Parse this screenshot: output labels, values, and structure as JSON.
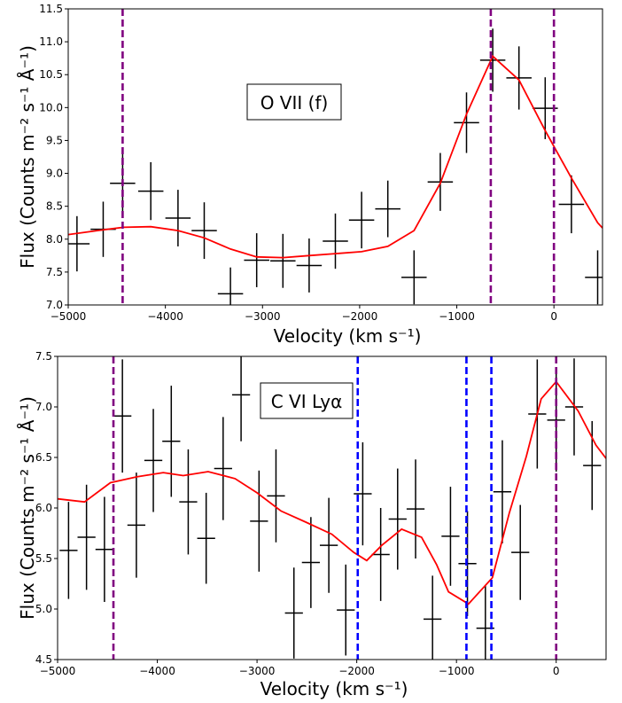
{
  "chart_data": [
    {
      "type": "scatter",
      "annotation": "O VII (f)",
      "xlabel": "Velocity (km s⁻¹)",
      "ylabel": "Flux (Counts m⁻² s⁻¹ Å⁻¹)",
      "xlim": [
        -5000,
        500
      ],
      "ylim": [
        7.0,
        11.5
      ],
      "xticks": [
        -5000,
        -4000,
        -3000,
        -2000,
        -1000,
        0
      ],
      "xtick_labels": [
        "−5000",
        "−4000",
        "−3000",
        "−2000",
        "−1000",
        "0"
      ],
      "yticks": [
        7.0,
        7.5,
        8.0,
        8.5,
        9.0,
        9.5,
        10.0,
        10.5,
        11.0,
        11.5
      ],
      "ytick_labels": [
        "7.0",
        "7.5",
        "8.0",
        "8.5",
        "9.0",
        "9.5",
        "10.0",
        "10.5",
        "11.0",
        "11.5"
      ],
      "grid": false,
      "data_points": [
        {
          "x": -4910,
          "y": 7.93,
          "xerr": 130,
          "yerr": 0.42
        },
        {
          "x": -4640,
          "y": 8.15,
          "xerr": 130,
          "yerr": 0.42
        },
        {
          "x": -4440,
          "y": 8.85,
          "xerr": 130,
          "yerr": 0.44
        },
        {
          "x": -4150,
          "y": 8.73,
          "xerr": 130,
          "yerr": 0.44
        },
        {
          "x": -3870,
          "y": 8.32,
          "xerr": 130,
          "yerr": 0.43
        },
        {
          "x": -3600,
          "y": 8.13,
          "xerr": 130,
          "yerr": 0.43
        },
        {
          "x": -3330,
          "y": 7.17,
          "xerr": 130,
          "yerr": 0.4
        },
        {
          "x": -3060,
          "y": 7.68,
          "xerr": 130,
          "yerr": 0.41
        },
        {
          "x": -2790,
          "y": 7.67,
          "xerr": 130,
          "yerr": 0.41
        },
        {
          "x": -2520,
          "y": 7.6,
          "xerr": 130,
          "yerr": 0.41
        },
        {
          "x": -2250,
          "y": 7.97,
          "xerr": 130,
          "yerr": 0.42
        },
        {
          "x": -1980,
          "y": 8.29,
          "xerr": 130,
          "yerr": 0.43
        },
        {
          "x": -1710,
          "y": 8.46,
          "xerr": 130,
          "yerr": 0.43
        },
        {
          "x": -1440,
          "y": 7.42,
          "xerr": 130,
          "yerr": 0.41
        },
        {
          "x": -1170,
          "y": 8.87,
          "xerr": 130,
          "yerr": 0.44
        },
        {
          "x": -900,
          "y": 9.77,
          "xerr": 130,
          "yerr": 0.46
        },
        {
          "x": -630,
          "y": 10.72,
          "xerr": 130,
          "yerr": 0.48
        },
        {
          "x": -360,
          "y": 10.45,
          "xerr": 130,
          "yerr": 0.48
        },
        {
          "x": -90,
          "y": 9.99,
          "xerr": 130,
          "yerr": 0.47
        },
        {
          "x": 180,
          "y": 8.53,
          "xerr": 130,
          "yerr": 0.44
        },
        {
          "x": 450,
          "y": 7.42,
          "xerr": 130,
          "yerr": 0.41
        }
      ],
      "model_line": {
        "color": "#ff0000",
        "x": [
          -5000,
          -4700,
          -4430,
          -4150,
          -3870,
          -3600,
          -3330,
          -3060,
          -2790,
          -2520,
          -2250,
          -1980,
          -1710,
          -1440,
          -1170,
          -900,
          -630,
          -360,
          -90,
          180,
          450,
          500
        ],
        "y": [
          8.07,
          8.13,
          8.18,
          8.19,
          8.13,
          8.02,
          7.85,
          7.73,
          7.72,
          7.75,
          7.78,
          7.81,
          7.89,
          8.13,
          8.85,
          9.9,
          10.78,
          10.42,
          9.65,
          8.93,
          8.25,
          8.17
        ]
      },
      "vlines": [
        {
          "x": -4440,
          "color": "#800080"
        },
        {
          "x": -650,
          "color": "#800080"
        },
        {
          "x": 0,
          "color": "#800080"
        }
      ]
    },
    {
      "type": "scatter",
      "annotation": "C VI Lyα",
      "xlabel": "Velocity (km s⁻¹)",
      "ylabel": "Flux (Counts m⁻² s⁻¹ Å⁻¹)",
      "xlim": [
        -5000,
        500
      ],
      "ylim": [
        4.5,
        7.5
      ],
      "xticks": [
        -5000,
        -4000,
        -3000,
        -2000,
        -1000,
        0
      ],
      "xtick_labels": [
        "−5000",
        "−4000",
        "−3000",
        "−2000",
        "−1000",
        "0"
      ],
      "yticks": [
        4.5,
        5.0,
        5.5,
        6.0,
        6.5,
        7.0,
        7.5
      ],
      "ytick_labels": [
        "4.5",
        "5.0",
        "5.5",
        "6.0",
        "6.5",
        "7.0",
        "7.5"
      ],
      "grid": false,
      "data_points": [
        {
          "x": -4890,
          "y": 5.58,
          "xerr": 90,
          "yerr": 0.48
        },
        {
          "x": -4710,
          "y": 5.71,
          "xerr": 90,
          "yerr": 0.52
        },
        {
          "x": -4530,
          "y": 5.59,
          "xerr": 90,
          "yerr": 0.52
        },
        {
          "x": -4350,
          "y": 6.91,
          "xerr": 90,
          "yerr": 0.56
        },
        {
          "x": -4210,
          "y": 5.83,
          "xerr": 90,
          "yerr": 0.52
        },
        {
          "x": -4040,
          "y": 6.47,
          "xerr": 90,
          "yerr": 0.51
        },
        {
          "x": -3860,
          "y": 6.66,
          "xerr": 90,
          "yerr": 0.55
        },
        {
          "x": -3690,
          "y": 6.06,
          "xerr": 90,
          "yerr": 0.52
        },
        {
          "x": -3510,
          "y": 5.7,
          "xerr": 90,
          "yerr": 0.45
        },
        {
          "x": -3340,
          "y": 6.39,
          "xerr": 90,
          "yerr": 0.51
        },
        {
          "x": -3160,
          "y": 7.12,
          "xerr": 90,
          "yerr": 0.46
        },
        {
          "x": -2980,
          "y": 5.87,
          "xerr": 90,
          "yerr": 0.5
        },
        {
          "x": -2810,
          "y": 6.12,
          "xerr": 90,
          "yerr": 0.46
        },
        {
          "x": -2630,
          "y": 4.96,
          "xerr": 90,
          "yerr": 0.45
        },
        {
          "x": -2460,
          "y": 5.46,
          "xerr": 90,
          "yerr": 0.45
        },
        {
          "x": -2280,
          "y": 5.63,
          "xerr": 90,
          "yerr": 0.47
        },
        {
          "x": -2110,
          "y": 4.99,
          "xerr": 90,
          "yerr": 0.45
        },
        {
          "x": -1940,
          "y": 6.14,
          "xerr": 90,
          "yerr": 0.51
        },
        {
          "x": -1760,
          "y": 5.54,
          "xerr": 90,
          "yerr": 0.46
        },
        {
          "x": -1590,
          "y": 5.89,
          "xerr": 90,
          "yerr": 0.5
        },
        {
          "x": -1410,
          "y": 5.99,
          "xerr": 90,
          "yerr": 0.49
        },
        {
          "x": -1240,
          "y": 4.9,
          "xerr": 90,
          "yerr": 0.43
        },
        {
          "x": -1060,
          "y": 5.72,
          "xerr": 90,
          "yerr": 0.49
        },
        {
          "x": -890,
          "y": 5.45,
          "xerr": 90,
          "yerr": 0.52
        },
        {
          "x": -710,
          "y": 4.81,
          "xerr": 90,
          "yerr": 0.42
        },
        {
          "x": -540,
          "y": 6.16,
          "xerr": 90,
          "yerr": 0.51
        },
        {
          "x": -360,
          "y": 5.56,
          "xerr": 90,
          "yerr": 0.47
        },
        {
          "x": -190,
          "y": 6.93,
          "xerr": 90,
          "yerr": 0.54
        },
        {
          "x": 0,
          "y": 6.87,
          "xerr": 90,
          "yerr": 0.51
        },
        {
          "x": 180,
          "y": 7.0,
          "xerr": 90,
          "yerr": 0.48
        },
        {
          "x": 360,
          "y": 6.42,
          "xerr": 90,
          "yerr": 0.44
        }
      ],
      "model_line": {
        "color": "#ff0000",
        "x": [
          -5000,
          -4730,
          -4470,
          -4200,
          -3940,
          -3740,
          -3490,
          -3220,
          -3000,
          -2760,
          -2510,
          -2250,
          -2030,
          -1900,
          -1750,
          -1550,
          -1350,
          -1200,
          -1080,
          -880,
          -640,
          -470,
          -300,
          -150,
          0,
          220,
          400,
          500
        ],
        "y": [
          6.09,
          6.06,
          6.25,
          6.31,
          6.35,
          6.32,
          6.36,
          6.29,
          6.15,
          5.97,
          5.86,
          5.74,
          5.56,
          5.48,
          5.63,
          5.79,
          5.71,
          5.44,
          5.17,
          5.05,
          5.31,
          5.95,
          6.51,
          7.08,
          7.25,
          6.96,
          6.62,
          6.49
        ]
      },
      "vlines": [
        {
          "x": -4440,
          "color": "#800080"
        },
        {
          "x": -1990,
          "color": "#0000ff"
        },
        {
          "x": -900,
          "color": "#0000ff"
        },
        {
          "x": -650,
          "color": "#0000ff"
        },
        {
          "x": 0,
          "color": "#800080"
        }
      ]
    }
  ]
}
